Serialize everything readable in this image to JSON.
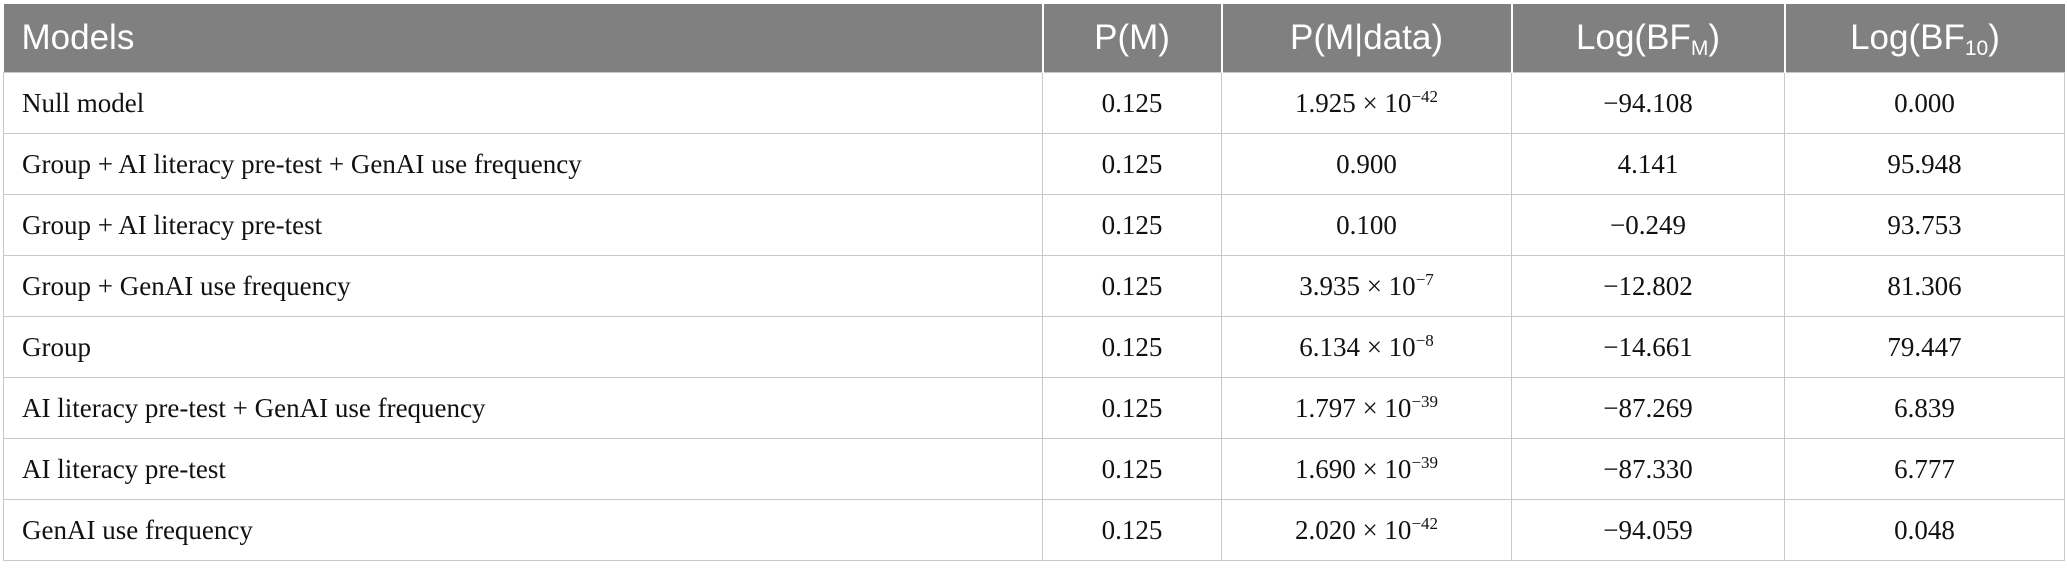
{
  "table": {
    "headers": [
      {
        "text": "Models"
      },
      {
        "text": "P(M)"
      },
      {
        "text": "P(M|data)"
      },
      {
        "text": "Log(BF",
        "sub": "M",
        "after": ")"
      },
      {
        "text": "Log(BF",
        "sub": "10",
        "after": ")"
      }
    ],
    "rows": [
      {
        "model": "Null model",
        "pm": "0.125",
        "pmd_base": "1.925 × 10",
        "pmd_exp": "−42",
        "logbfm": "−94.108",
        "logbf10": "0.000"
      },
      {
        "model": "Group + AI literacy pre-test + GenAI use frequency",
        "pm": "0.125",
        "pmd_base": "0.900",
        "pmd_exp": "",
        "logbfm": "4.141",
        "logbf10": "95.948"
      },
      {
        "model": "Group + AI literacy pre-test",
        "pm": "0.125",
        "pmd_base": "0.100",
        "pmd_exp": "",
        "logbfm": "−0.249",
        "logbf10": "93.753"
      },
      {
        "model": "Group + GenAI use frequency",
        "pm": "0.125",
        "pmd_base": "3.935 × 10",
        "pmd_exp": "−7",
        "logbfm": "−12.802",
        "logbf10": "81.306"
      },
      {
        "model": "Group",
        "pm": "0.125",
        "pmd_base": "6.134 × 10",
        "pmd_exp": "−8",
        "logbfm": "−14.661",
        "logbf10": "79.447"
      },
      {
        "model": "AI literacy pre-test + GenAI use frequency",
        "pm": "0.125",
        "pmd_base": "1.797 × 10",
        "pmd_exp": "−39",
        "logbfm": "−87.269",
        "logbf10": "6.839"
      },
      {
        "model": "AI literacy pre-test",
        "pm": "0.125",
        "pmd_base": "1.690 × 10",
        "pmd_exp": "−39",
        "logbfm": "−87.330",
        "logbf10": "6.777"
      },
      {
        "model": "GenAI use frequency",
        "pm": "0.125",
        "pmd_base": "2.020 × 10",
        "pmd_exp": "−42",
        "logbfm": "−94.059",
        "logbf10": "0.048"
      }
    ]
  }
}
